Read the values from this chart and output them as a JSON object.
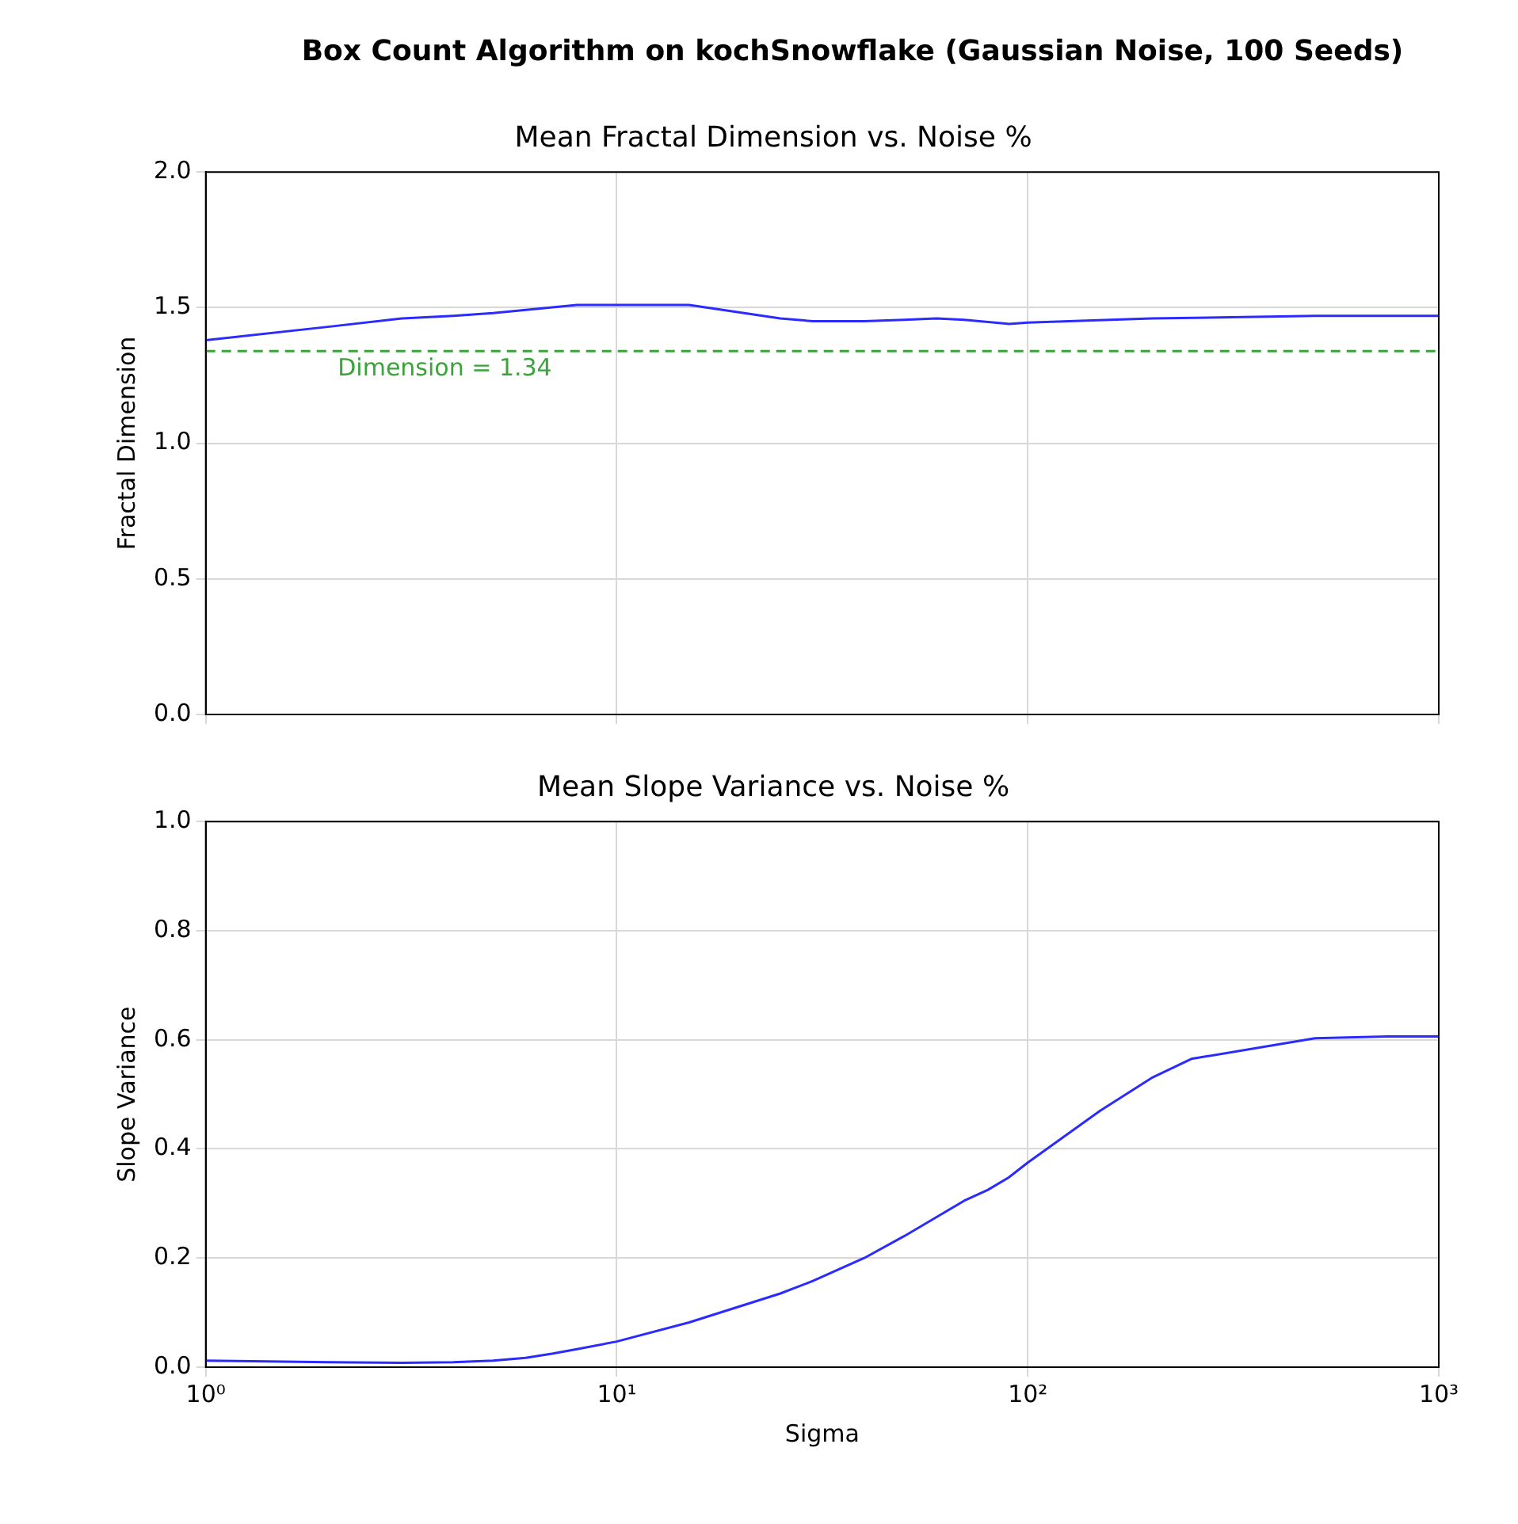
{
  "chart_data": [
    {
      "type": "line",
      "title": "Box Count Algorithm on kochSnowflake (Gaussian Noise, 100 Seeds)",
      "subtitle": "Mean Fractal Dimension vs. Noise %",
      "ylabel": "Fractal Dimension",
      "x": [
        1,
        2,
        3,
        4,
        5,
        8,
        10,
        15,
        25,
        30,
        40,
        50,
        60,
        70,
        90,
        100,
        200,
        500,
        1000
      ],
      "series": [
        {
          "color": "#2b2bff",
          "values": [
            1.38,
            1.43,
            1.46,
            1.47,
            1.48,
            1.51,
            1.51,
            1.51,
            1.46,
            1.45,
            1.45,
            1.455,
            1.46,
            1.455,
            1.44,
            1.445,
            1.46,
            1.47,
            1.47
          ]
        }
      ],
      "log": "x",
      "xlim": [
        1,
        1000
      ],
      "xticks": [
        {
          "value": 1,
          "label": null
        },
        {
          "value": 10,
          "label": null
        },
        {
          "value": 100,
          "label": null
        },
        {
          "value": 1000,
          "label": null
        }
      ],
      "ylim": [
        0,
        2
      ],
      "yticks": [
        {
          "value": 0,
          "label": "0.0"
        },
        {
          "value": 0.5,
          "label": "0.5"
        },
        {
          "value": 1,
          "label": "1.0"
        },
        {
          "value": 1.5,
          "label": "1.5"
        },
        {
          "value": 2,
          "label": "2.0"
        }
      ],
      "grid": true,
      "legend": false,
      "tick_labels": "y",
      "marker": "none",
      "line_style": "solid",
      "ref_lines": [
        {
          "axis": "y",
          "value": 1.34,
          "label": "Dimension = 1.34",
          "color": "#3aa33a",
          "line_style": "dashed"
        }
      ]
    },
    {
      "type": "line",
      "title": "Mean Slope Variance vs. Noise %",
      "xlabel": "Sigma",
      "ylabel": "Slope Variance",
      "x": [
        1,
        2,
        3,
        4,
        5,
        6,
        7,
        8,
        10,
        15,
        25,
        30,
        40,
        50,
        60,
        70,
        80,
        90,
        100,
        150,
        200,
        250,
        500,
        750,
        1000
      ],
      "series": [
        {
          "color": "#2b2bff",
          "values": [
            0.012,
            0.009,
            0.008,
            0.009,
            0.012,
            0.017,
            0.025,
            0.033,
            0.047,
            0.082,
            0.135,
            0.158,
            0.2,
            0.24,
            0.275,
            0.305,
            0.325,
            0.348,
            0.375,
            0.47,
            0.53,
            0.565,
            0.603,
            0.606,
            0.606
          ]
        }
      ],
      "log": "x",
      "xlim": [
        1,
        1000
      ],
      "xticks": [
        {
          "value": 1,
          "label": "10⁰"
        },
        {
          "value": 10,
          "label": "10¹"
        },
        {
          "value": 100,
          "label": "10²"
        },
        {
          "value": 1000,
          "label": "10³"
        }
      ],
      "ylim": [
        0,
        1
      ],
      "yticks": [
        {
          "value": 0,
          "label": "0.0"
        },
        {
          "value": 0.2,
          "label": "0.2"
        },
        {
          "value": 0.4,
          "label": "0.4"
        },
        {
          "value": 0.6,
          "label": "0.6"
        },
        {
          "value": 0.8,
          "label": "0.8"
        },
        {
          "value": 1,
          "label": "1.0"
        }
      ],
      "grid": true,
      "legend": false,
      "marker": "none",
      "line_style": "solid"
    }
  ]
}
